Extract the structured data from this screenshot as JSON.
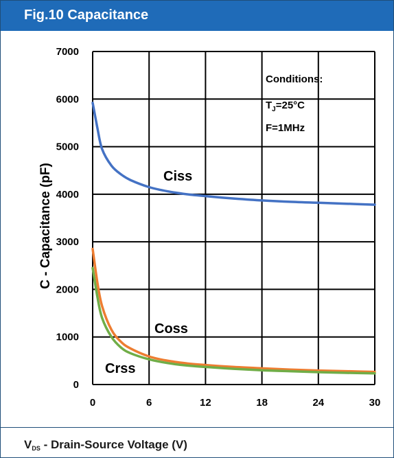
{
  "figure": {
    "title": "Fig.10 Capacitance",
    "xlabel_main": "V",
    "xlabel_sub": "DS",
    "xlabel_rest": " - Drain-Source Voltage (V)"
  },
  "conditions": {
    "title": "Conditions:",
    "temp_main": "T",
    "temp_sub": "J",
    "temp_rest": "=25°C",
    "freq": "F=1MHz"
  },
  "colors": {
    "header": "#1f6bb8",
    "ciss": "#4472c4",
    "coss": "#ed7d31",
    "crss": "#70ad47"
  },
  "chart_data": {
    "type": "line",
    "ylabel": "C - Capacitance (pF)",
    "xlim": [
      0,
      30
    ],
    "ylim": [
      0,
      7000
    ],
    "x_ticks": [
      0,
      6,
      12,
      18,
      24,
      30
    ],
    "y_ticks": [
      0,
      1000,
      2000,
      3000,
      4000,
      5000,
      6000,
      7000
    ],
    "grid": true,
    "series": [
      {
        "name": "Ciss",
        "x": [
          0,
          0.5,
          1,
          2,
          3,
          4,
          6,
          8,
          10,
          12,
          15,
          18,
          21,
          24,
          27,
          30
        ],
        "y": [
          5920,
          5400,
          4950,
          4600,
          4420,
          4300,
          4150,
          4060,
          4000,
          3960,
          3910,
          3870,
          3840,
          3820,
          3800,
          3780
        ]
      },
      {
        "name": "Coss",
        "x": [
          0,
          0.5,
          1,
          2,
          3,
          4,
          6,
          8,
          10,
          12,
          15,
          18,
          21,
          24,
          27,
          30
        ],
        "y": [
          2850,
          2150,
          1650,
          1150,
          900,
          760,
          590,
          500,
          445,
          410,
          370,
          340,
          315,
          295,
          280,
          265
        ]
      },
      {
        "name": "Crss",
        "x": [
          0,
          0.5,
          1,
          2,
          3,
          4,
          6,
          8,
          10,
          12,
          15,
          18,
          21,
          24,
          27,
          30
        ],
        "y": [
          2450,
          1850,
          1400,
          1000,
          780,
          660,
          530,
          450,
          400,
          370,
          330,
          300,
          280,
          260,
          245,
          235
        ]
      }
    ]
  }
}
